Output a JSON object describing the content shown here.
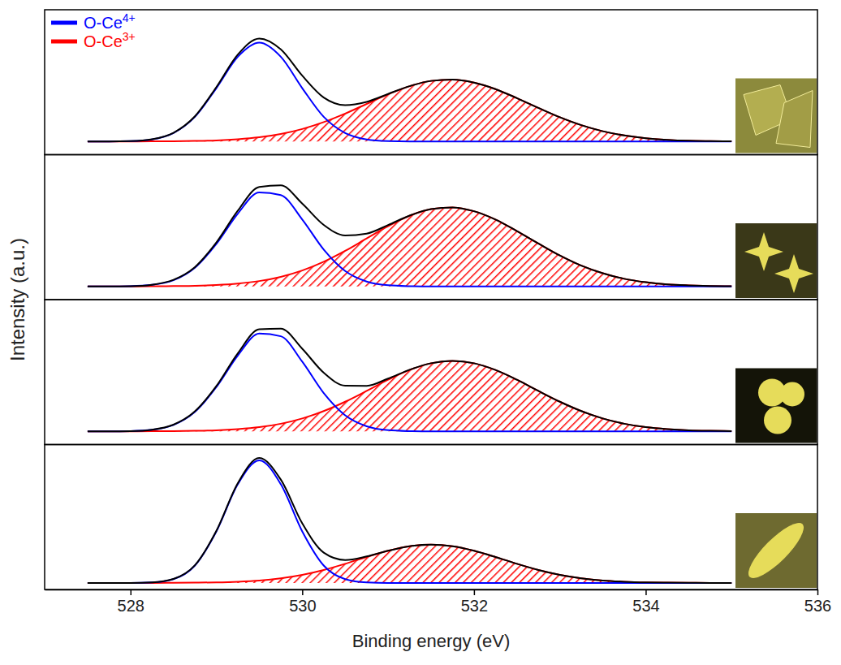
{
  "chart_data": {
    "type": "line",
    "x_label": "Binding energy (eV)",
    "y_label": "Intensity (a.u.)",
    "xlim": [
      527,
      536
    ],
    "xticks": [
      528,
      530,
      532,
      534,
      536
    ],
    "tick_labels": "x",
    "legend": "upper left",
    "x": [
      527.5,
      527.75,
      528,
      528.25,
      528.5,
      528.75,
      529,
      529.25,
      529.5,
      529.75,
      530,
      530.25,
      530.5,
      530.75,
      531,
      531.25,
      531.5,
      531.75,
      532,
      532.25,
      532.5,
      532.75,
      533,
      533.25,
      533.5,
      533.75,
      534,
      534.25,
      534.5,
      534.75,
      535
    ],
    "panels": [
      {
        "ylim": [
          -0.1,
          1.0
        ],
        "series": [
          {
            "name": "O-Ce3+",
            "type": "area",
            "color": "#ff0000",
            "values": [
              0,
              0,
              0,
              0.001,
              0.002,
              0.004,
              0.008,
              0.017,
              0.032,
              0.057,
              0.095,
              0.147,
              0.212,
              0.285,
              0.358,
              0.42,
              0.46,
              0.47,
              0.447,
              0.398,
              0.329,
              0.255,
              0.184,
              0.124,
              0.078,
              0.046,
              0.025,
              0.013,
              0.006,
              0.003,
              0.001
            ]
          },
          {
            "name": "O-Ce4+",
            "type": "line",
            "color": "#0000ff",
            "values": [
              0,
              0,
              0.003,
              0.016,
              0.064,
              0.187,
              0.405,
              0.643,
              0.75,
              0.643,
              0.405,
              0.187,
              0.064,
              0.016,
              0.003,
              0,
              0,
              0,
              0,
              0,
              0,
              0,
              0,
              0,
              0,
              0,
              0,
              0,
              0,
              0,
              0
            ]
          },
          {
            "type": "line",
            "color": "#000000",
            "values": [
              0,
              0,
              0.003,
              0.017,
              0.066,
              0.191,
              0.413,
              0.66,
              0.782,
              0.7,
              0.5,
              0.334,
              0.276,
              0.301,
              0.361,
              0.42,
              0.46,
              0.47,
              0.447,
              0.398,
              0.329,
              0.255,
              0.184,
              0.124,
              0.078,
              0.046,
              0.025,
              0.013,
              0.006,
              0.003,
              0.001
            ]
          }
        ]
      },
      {
        "ylim": [
          -0.1,
          1.0
        ],
        "series": [
          {
            "name": "O-Ce3+",
            "type": "area",
            "color": "#ff0000",
            "values": [
              0,
              0,
              0,
              0.001,
              0.003,
              0.005,
              0.011,
              0.022,
              0.041,
              0.073,
              0.121,
              0.187,
              0.27,
              0.364,
              0.457,
              0.536,
              0.587,
              0.6,
              0.571,
              0.508,
              0.42,
              0.326,
              0.235,
              0.158,
              0.1,
              0.058,
              0.032,
              0.016,
              0.008,
              0.003,
              0.001
            ]
          },
          {
            "name": "O-Ce4+",
            "type": "line",
            "color": "#0000ff",
            "values": [
              0,
              0,
              0.002,
              0.012,
              0.047,
              0.142,
              0.323,
              0.553,
              0.714,
              0.694,
              0.508,
              0.28,
              0.117,
              0.037,
              0.009,
              0.002,
              0,
              0,
              0,
              0,
              0,
              0,
              0,
              0,
              0,
              0,
              0,
              0,
              0,
              0,
              0
            ]
          },
          {
            "type": "line",
            "color": "#000000",
            "values": [
              0,
              0,
              0.002,
              0.013,
              0.05,
              0.147,
              0.334,
              0.575,
              0.755,
              0.767,
              0.629,
              0.467,
              0.387,
              0.401,
              0.466,
              0.538,
              0.587,
              0.6,
              0.571,
              0.508,
              0.42,
              0.326,
              0.235,
              0.158,
              0.1,
              0.058,
              0.032,
              0.016,
              0.008,
              0.003,
              0.001
            ]
          }
        ]
      },
      {
        "ylim": [
          -0.1,
          1.0
        ],
        "series": [
          {
            "name": "O-Ce3+",
            "type": "area",
            "color": "#ff0000",
            "values": [
              0,
              0,
              0,
              0.001,
              0.002,
              0.004,
              0.008,
              0.017,
              0.032,
              0.058,
              0.098,
              0.154,
              0.225,
              0.307,
              0.392,
              0.466,
              0.517,
              0.535,
              0.517,
              0.466,
              0.392,
              0.307,
              0.225,
              0.154,
              0.098,
              0.058,
              0.032,
              0.017,
              0.008,
              0.004,
              0.002
            ]
          },
          {
            "name": "O-Ce4+",
            "type": "line",
            "color": "#0000ff",
            "values": [
              0,
              0,
              0.002,
              0.012,
              0.049,
              0.148,
              0.336,
              0.576,
              0.743,
              0.722,
              0.529,
              0.291,
              0.122,
              0.039,
              0.009,
              0.002,
              0,
              0,
              0,
              0,
              0,
              0,
              0,
              0,
              0,
              0,
              0,
              0,
              0,
              0,
              0
            ]
          },
          {
            "type": "line",
            "color": "#000000",
            "values": [
              0,
              0,
              0.002,
              0.013,
              0.051,
              0.152,
              0.344,
              0.593,
              0.775,
              0.78,
              0.627,
              0.445,
              0.347,
              0.346,
              0.401,
              0.468,
              0.517,
              0.535,
              0.517,
              0.466,
              0.392,
              0.307,
              0.225,
              0.154,
              0.098,
              0.058,
              0.032,
              0.017,
              0.008,
              0.004,
              0.002
            ]
          }
        ]
      },
      {
        "ylim": [
          -0.05,
          1.05
        ],
        "series": [
          {
            "name": "O-Ce3+",
            "type": "area",
            "color": "#ff0000",
            "values": [
              0,
              0,
              0,
              0,
              0.001,
              0.002,
              0.004,
              0.009,
              0.018,
              0.035,
              0.061,
              0.098,
              0.145,
              0.197,
              0.244,
              0.278,
              0.29,
              0.278,
              0.244,
              0.197,
              0.145,
              0.098,
              0.061,
              0.035,
              0.018,
              0.009,
              0.004,
              0.002,
              0.001,
              0,
              0
            ]
          },
          {
            "name": "O-Ce4+",
            "type": "line",
            "color": "#0000ff",
            "values": [
              0,
              0,
              0,
              0.004,
              0.029,
              0.132,
              0.391,
              0.749,
              0.93,
              0.749,
              0.391,
              0.132,
              0.029,
              0.004,
              0,
              0,
              0,
              0,
              0,
              0,
              0,
              0,
              0,
              0,
              0,
              0,
              0,
              0,
              0,
              0,
              0
            ]
          },
          {
            "type": "line",
            "color": "#000000",
            "values": [
              0,
              0,
              0,
              0.004,
              0.03,
              0.134,
              0.395,
              0.758,
              0.948,
              0.784,
              0.452,
              0.23,
              0.174,
              0.201,
              0.244,
              0.278,
              0.29,
              0.278,
              0.244,
              0.197,
              0.145,
              0.098,
              0.061,
              0.035,
              0.018,
              0.009,
              0.004,
              0.002,
              0.001,
              0,
              0
            ]
          }
        ]
      }
    ]
  }
}
